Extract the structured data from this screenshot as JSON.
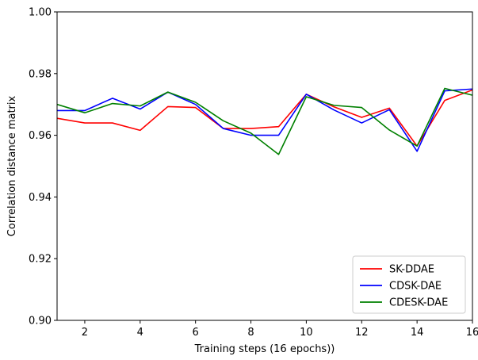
{
  "chart_data": {
    "type": "line",
    "title": "",
    "xlabel": "Training steps (16 epochs))",
    "ylabel": "Correlation distance matrix",
    "xlim": [
      1,
      16
    ],
    "ylim": [
      0.9,
      1.0
    ],
    "xticks": [
      2,
      4,
      6,
      8,
      10,
      12,
      14,
      16
    ],
    "xtick_labels": [
      "2",
      "4",
      "6",
      "8",
      "10",
      "12",
      "14",
      "16"
    ],
    "yticks": [
      0.9,
      0.92,
      0.94,
      0.96,
      0.98,
      1.0
    ],
    "ytick_labels": [
      "0.90",
      "0.92",
      "0.94",
      "0.96",
      "0.98",
      "1.00"
    ],
    "grid": false,
    "legend_position": "lower-right",
    "x": [
      1,
      2,
      3,
      4,
      5,
      6,
      7,
      8,
      9,
      10,
      11,
      12,
      13,
      14,
      15,
      16
    ],
    "series": [
      {
        "name": "SK-DDAE",
        "color": "#ff0000",
        "values": [
          0.9655,
          0.964,
          0.964,
          0.9616,
          0.9693,
          0.969,
          0.9622,
          0.9622,
          0.9628,
          0.9733,
          0.9692,
          0.9658,
          0.9688,
          0.9565,
          0.9713,
          0.9747
        ]
      },
      {
        "name": "CDSK-DAE",
        "color": "#0000ff",
        "values": [
          0.968,
          0.968,
          0.972,
          0.9685,
          0.974,
          0.97,
          0.9622,
          0.96,
          0.96,
          0.9733,
          0.9682,
          0.964,
          0.9683,
          0.9548,
          0.9744,
          0.975
        ]
      },
      {
        "name": "CDESK-DAE",
        "color": "#008000",
        "values": [
          0.97,
          0.9673,
          0.9703,
          0.9695,
          0.974,
          0.9707,
          0.9647,
          0.9607,
          0.9538,
          0.9725,
          0.9697,
          0.969,
          0.9617,
          0.9565,
          0.9752,
          0.973
        ]
      }
    ]
  }
}
